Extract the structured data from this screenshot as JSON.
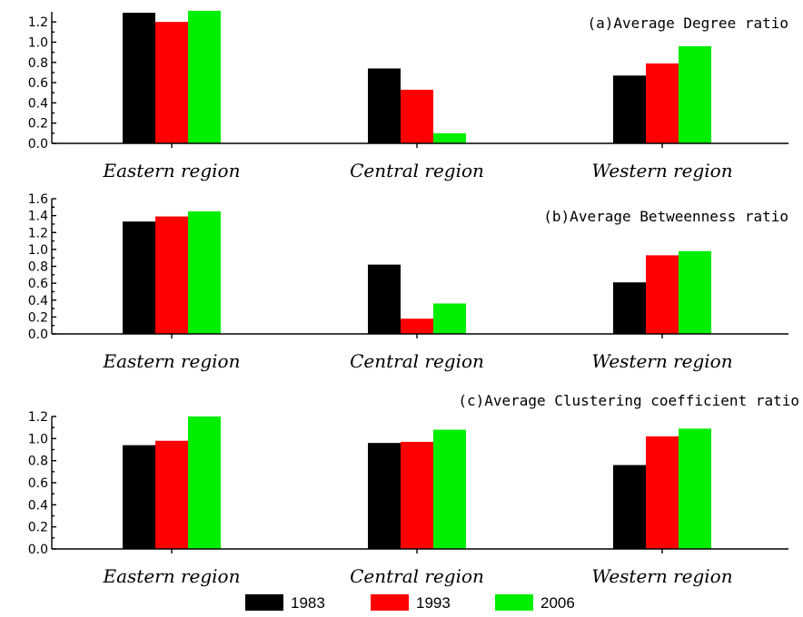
{
  "chart_data": [
    {
      "type": "bar",
      "title": "(a)Average Degree ratio",
      "categories": [
        "Eastern region",
        "Central region",
        "Western region"
      ],
      "series": [
        {
          "name": "1983",
          "values": [
            1.29,
            0.74,
            0.67
          ]
        },
        {
          "name": "1993",
          "values": [
            1.2,
            0.53,
            0.79
          ]
        },
        {
          "name": "2006",
          "values": [
            1.31,
            0.1,
            0.96
          ]
        }
      ],
      "ylim": [
        0,
        1.3
      ],
      "yticks": [
        "0.0",
        "0.2",
        "0.4",
        "0.6",
        "0.8",
        "1.0",
        "1.2"
      ]
    },
    {
      "type": "bar",
      "title": "(b)Average Betweenness ratio",
      "categories": [
        "Eastern region",
        "Central region",
        "Western region"
      ],
      "series": [
        {
          "name": "1983",
          "values": [
            1.33,
            0.82,
            0.61
          ]
        },
        {
          "name": "1993",
          "values": [
            1.39,
            0.18,
            0.93
          ]
        },
        {
          "name": "2006",
          "values": [
            1.45,
            0.36,
            0.98
          ]
        }
      ],
      "ylim": [
        0,
        1.6
      ],
      "yticks": [
        "0.0",
        "0.2",
        "0.4",
        "0.6",
        "0.8",
        "1.0",
        "1.2",
        "1.4",
        "1.6"
      ]
    },
    {
      "type": "bar",
      "title": "(c)Average Clustering coefficient ratio",
      "categories": [
        "Eastern region",
        "Central region",
        "Western region"
      ],
      "series": [
        {
          "name": "1983",
          "values": [
            0.94,
            0.96,
            0.76
          ]
        },
        {
          "name": "1993",
          "values": [
            0.98,
            0.97,
            1.02
          ]
        },
        {
          "name": "2006",
          "values": [
            1.2,
            1.08,
            1.09
          ]
        }
      ],
      "ylim": [
        0,
        1.2
      ],
      "yticks": [
        "0.0",
        "0.2",
        "0.4",
        "0.6",
        "0.8",
        "1.0",
        "1.2"
      ]
    }
  ],
  "legend": {
    "placement": "bottom",
    "entries": [
      {
        "label": "1983",
        "color": "#000000"
      },
      {
        "label": "1993",
        "color": "#ff0000"
      },
      {
        "label": "2006",
        "color": "#00ee00"
      }
    ]
  }
}
